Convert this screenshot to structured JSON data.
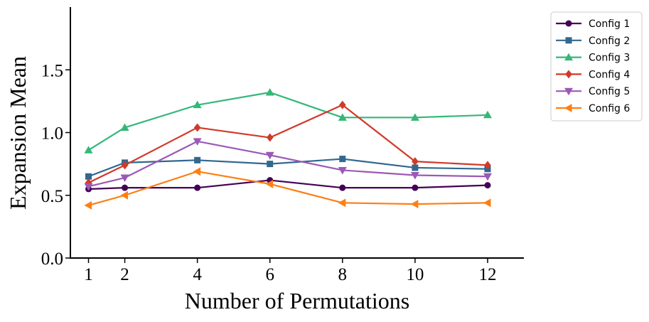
{
  "chart_data": {
    "type": "line",
    "title": "",
    "xlabel": "Number of Permutations",
    "ylabel": "Expansion Mean",
    "x": [
      1,
      2,
      4,
      6,
      8,
      10,
      12
    ],
    "x_ticks": [
      1,
      2,
      4,
      6,
      8,
      10,
      12
    ],
    "x_tick_labels": [
      "1",
      "2",
      "4",
      "6",
      "8",
      "10",
      "12"
    ],
    "xlim": [
      0.5,
      13.0
    ],
    "ylim": [
      0.0,
      2.0
    ],
    "y_ticks": [
      0.0,
      0.5,
      1.0,
      1.5
    ],
    "y_tick_labels": [
      "0.0",
      "0.5",
      "1.0",
      "1.5"
    ],
    "grid": false,
    "legend_position": "outside-top-right",
    "series": [
      {
        "name": "Config 1",
        "color": "#440154",
        "marker": "circle",
        "values": [
          0.55,
          0.56,
          0.56,
          0.62,
          0.56,
          0.56,
          0.58
        ]
      },
      {
        "name": "Config 2",
        "color": "#31688e",
        "marker": "square",
        "values": [
          0.65,
          0.76,
          0.78,
          0.75,
          0.79,
          0.72,
          0.71
        ]
      },
      {
        "name": "Config 3",
        "color": "#35b779",
        "marker": "triangle-up",
        "values": [
          0.86,
          1.04,
          1.22,
          1.32,
          1.12,
          1.12,
          1.14
        ]
      },
      {
        "name": "Config 4",
        "color": "#d03a2a",
        "marker": "diamond",
        "values": [
          0.6,
          0.74,
          1.04,
          0.96,
          1.22,
          0.77,
          0.74
        ]
      },
      {
        "name": "Config 5",
        "color": "#9b59b6",
        "marker": "triangle-down",
        "values": [
          0.57,
          0.64,
          0.93,
          0.82,
          0.7,
          0.66,
          0.65
        ]
      },
      {
        "name": "Config 6",
        "color": "#fd7f14",
        "marker": "triangle-left",
        "values": [
          0.42,
          0.5,
          0.69,
          0.59,
          0.44,
          0.43,
          0.44
        ]
      }
    ]
  }
}
